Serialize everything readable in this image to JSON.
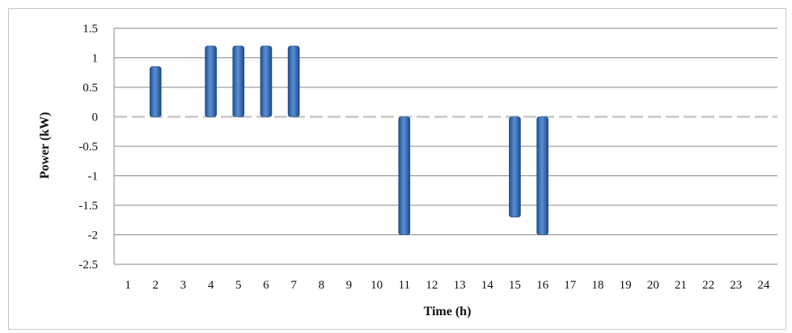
{
  "chart_data": {
    "type": "bar",
    "xlabel": "Time (h)",
    "ylabel": "Power (kW)",
    "ylim": [
      -2.5,
      1.5
    ],
    "ytick_step": 0.5,
    "grid": true,
    "legend": "none",
    "bar_color": "#3f73b8",
    "categories": [
      "1",
      "2",
      "3",
      "4",
      "5",
      "6",
      "7",
      "8",
      "9",
      "10",
      "11",
      "12",
      "13",
      "14",
      "15",
      "16",
      "17",
      "18",
      "19",
      "20",
      "21",
      "22",
      "23",
      "24"
    ],
    "values": [
      0,
      0.85,
      0,
      1.2,
      1.2,
      1.2,
      1.2,
      0,
      0,
      0,
      -2.0,
      0,
      0,
      0,
      -1.7,
      -2.0,
      0,
      0,
      0,
      0,
      0,
      0,
      0,
      0
    ],
    "yticks": [
      "1.5",
      "1",
      "0.5",
      "0",
      "-0.5",
      "-1",
      "-1.5",
      "-2",
      "-2.5"
    ]
  }
}
